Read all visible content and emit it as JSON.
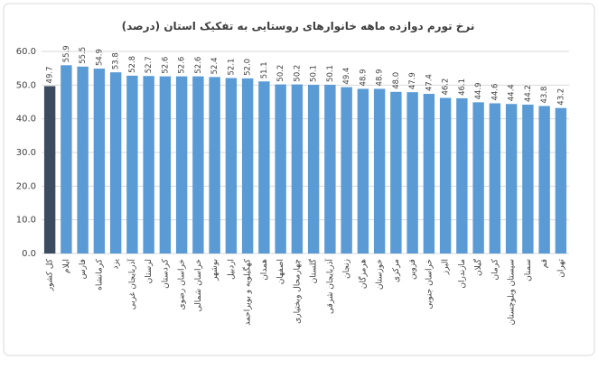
{
  "chart_data": {
    "type": "bar",
    "title": "نرخ تورم دوازده ماهه خانوارهای روستایی به تفکیک استان (درصد)",
    "categories": [
      "کل کشور",
      "ایلام",
      "فارس",
      "کرمانشاه",
      "یزد",
      "آذربایجان غربی",
      "لرستان",
      "کردستان",
      "خراسان رضوی",
      "خراسان شمالی",
      "بوشهر",
      "اردبیل",
      "کهگیلویه و بویراحمد",
      "همدان",
      "اصفهان",
      "چهارمحال وبختیاری",
      "گلستان",
      "آذربایجان شرقی",
      "زنجان",
      "هرمزگان",
      "خوزستان",
      "مرکزی",
      "قزوین",
      "خراسان جنوبی",
      "البرز",
      "مازندران",
      "گیلان",
      "کرمان",
      "سیستان وبلوچستان",
      "سمنان",
      "قم",
      "تهران"
    ],
    "values": [
      49.7,
      55.9,
      55.5,
      54.9,
      53.8,
      52.8,
      52.7,
      52.6,
      52.6,
      52.6,
      52.4,
      52.1,
      52.0,
      51.1,
      50.2,
      50.2,
      50.1,
      50.1,
      49.4,
      48.9,
      48.9,
      48.0,
      47.9,
      47.4,
      46.2,
      46.1,
      44.9,
      44.6,
      44.4,
      44.2,
      43.8,
      43.2
    ],
    "value_labels": [
      "49.7",
      "55.9",
      "55.5",
      "54.9",
      "53.8",
      "52.8",
      "52.7",
      "52.6",
      "52.6",
      "52.6",
      "52.4",
      "52.1",
      "52.0",
      "51.1",
      "50.2",
      "50.2",
      "50.1",
      "50.1",
      "49.4",
      "48.9",
      "48.9",
      "48.0",
      "47.9",
      "47.4",
      "46.2",
      "46.1",
      "44.9",
      "44.6",
      "44.4",
      "44.2",
      "43.8",
      "43.2"
    ],
    "colors": [
      "#3d4b60",
      "#5b9bd5",
      "#5b9bd5",
      "#5b9bd5",
      "#5b9bd5",
      "#5b9bd5",
      "#5b9bd5",
      "#5b9bd5",
      "#5b9bd5",
      "#5b9bd5",
      "#5b9bd5",
      "#5b9bd5",
      "#5b9bd5",
      "#5b9bd5",
      "#5b9bd5",
      "#5b9bd5",
      "#5b9bd5",
      "#5b9bd5",
      "#5b9bd5",
      "#5b9bd5",
      "#5b9bd5",
      "#5b9bd5",
      "#5b9bd5",
      "#5b9bd5",
      "#5b9bd5",
      "#5b9bd5",
      "#5b9bd5",
      "#5b9bd5",
      "#5b9bd5",
      "#5b9bd5",
      "#5b9bd5",
      "#5b9bd5"
    ],
    "ylim": [
      0,
      60
    ],
    "yticks": [
      {
        "value": 0,
        "label": "0.0"
      },
      {
        "value": 10,
        "label": "10.0"
      },
      {
        "value": 20,
        "label": "20.0"
      },
      {
        "value": 30,
        "label": "30.0"
      },
      {
        "value": 40,
        "label": "40.0"
      },
      {
        "value": 50,
        "label": "50.0"
      },
      {
        "value": 60,
        "label": "60.0"
      }
    ],
    "grid": true
  }
}
